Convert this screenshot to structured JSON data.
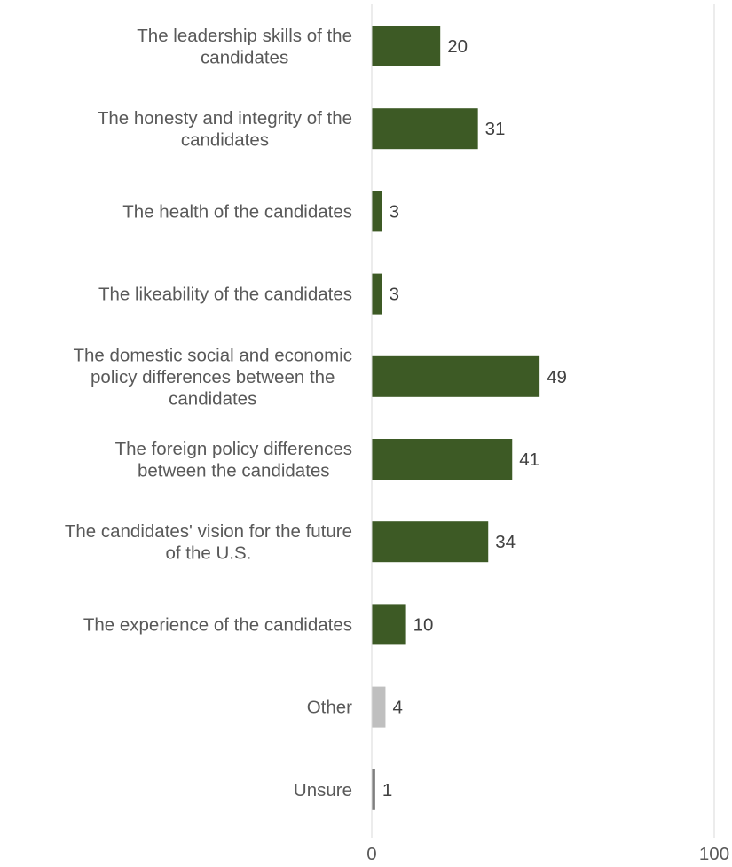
{
  "chart_data": {
    "type": "bar",
    "orientation": "horizontal",
    "categories": [
      "The leadership skills of the candidates",
      "The honesty and integrity of the candidates",
      "The health of the candidates",
      "The likeability of the candidates",
      "The domestic social and economic policy differences between the candidates",
      "The foreign policy differences between the candidates",
      "The candidates' vision for the future of the U.S.",
      "The experience of the candidates",
      "Other",
      "Unsure"
    ],
    "category_lines": [
      [
        "The leadership skills of the",
        "candidates"
      ],
      [
        "The honesty and integrity of the",
        "candidates"
      ],
      [
        "The health of the candidates"
      ],
      [
        "The likeability of the candidates"
      ],
      [
        "The domestic social and economic",
        "policy differences between the",
        "candidates"
      ],
      [
        "The foreign policy differences",
        "between the candidates"
      ],
      [
        "The candidates' vision for the future",
        "of the U.S."
      ],
      [
        "The experience of the candidates"
      ],
      [
        "Other"
      ],
      [
        "Unsure"
      ]
    ],
    "values": [
      20,
      31,
      3,
      3,
      49,
      41,
      34,
      10,
      4,
      1
    ],
    "bar_colors": [
      "#3d5a25",
      "#3d5a25",
      "#3d5a25",
      "#3d5a25",
      "#3d5a25",
      "#3d5a25",
      "#3d5a25",
      "#3d5a25",
      "#bfbfbf",
      "#7f7f7f"
    ],
    "xlim": [
      0,
      100
    ],
    "xticks": [
      0,
      100
    ],
    "grid": true,
    "title": "",
    "xlabel": "",
    "ylabel": ""
  }
}
